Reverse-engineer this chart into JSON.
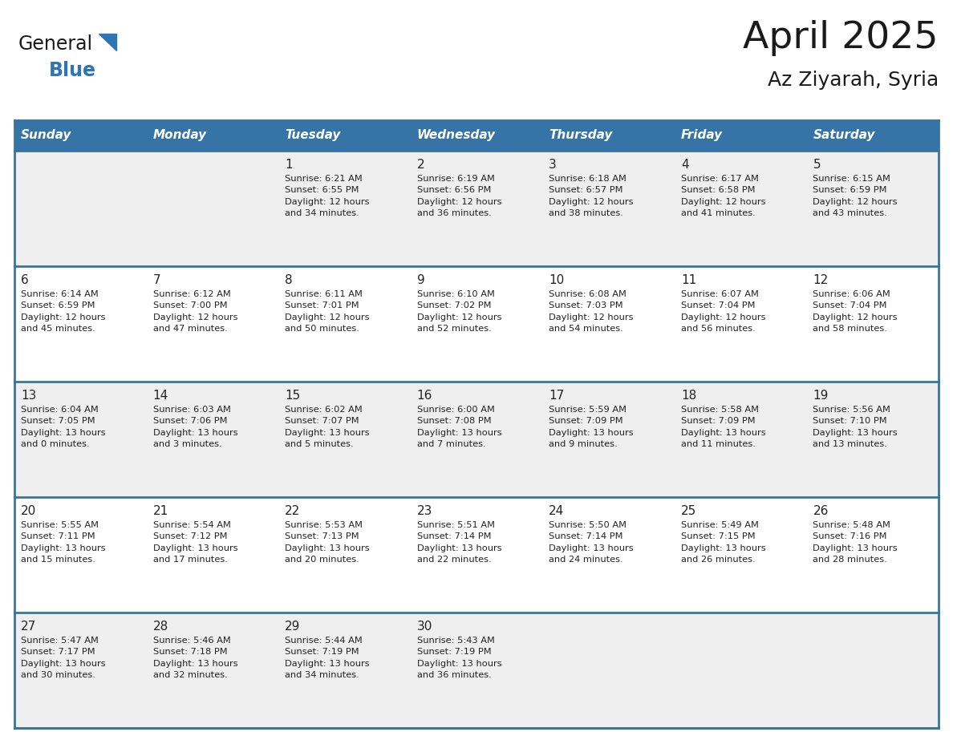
{
  "title": "April 2025",
  "subtitle": "Az Ziyarah, Syria",
  "days_of_week": [
    "Sunday",
    "Monday",
    "Tuesday",
    "Wednesday",
    "Thursday",
    "Friday",
    "Saturday"
  ],
  "header_bg": "#3674a8",
  "header_text": "#FFFFFF",
  "row_bg_odd": "#EFEFEF",
  "row_bg_even": "#FFFFFF",
  "separator_color": "#3674a8",
  "text_color": "#222222",
  "calendar_data": [
    [
      {
        "day": "",
        "info": ""
      },
      {
        "day": "",
        "info": ""
      },
      {
        "day": "1",
        "info": "Sunrise: 6:21 AM\nSunset: 6:55 PM\nDaylight: 12 hours\nand 34 minutes."
      },
      {
        "day": "2",
        "info": "Sunrise: 6:19 AM\nSunset: 6:56 PM\nDaylight: 12 hours\nand 36 minutes."
      },
      {
        "day": "3",
        "info": "Sunrise: 6:18 AM\nSunset: 6:57 PM\nDaylight: 12 hours\nand 38 minutes."
      },
      {
        "day": "4",
        "info": "Sunrise: 6:17 AM\nSunset: 6:58 PM\nDaylight: 12 hours\nand 41 minutes."
      },
      {
        "day": "5",
        "info": "Sunrise: 6:15 AM\nSunset: 6:59 PM\nDaylight: 12 hours\nand 43 minutes."
      }
    ],
    [
      {
        "day": "6",
        "info": "Sunrise: 6:14 AM\nSunset: 6:59 PM\nDaylight: 12 hours\nand 45 minutes."
      },
      {
        "day": "7",
        "info": "Sunrise: 6:12 AM\nSunset: 7:00 PM\nDaylight: 12 hours\nand 47 minutes."
      },
      {
        "day": "8",
        "info": "Sunrise: 6:11 AM\nSunset: 7:01 PM\nDaylight: 12 hours\nand 50 minutes."
      },
      {
        "day": "9",
        "info": "Sunrise: 6:10 AM\nSunset: 7:02 PM\nDaylight: 12 hours\nand 52 minutes."
      },
      {
        "day": "10",
        "info": "Sunrise: 6:08 AM\nSunset: 7:03 PM\nDaylight: 12 hours\nand 54 minutes."
      },
      {
        "day": "11",
        "info": "Sunrise: 6:07 AM\nSunset: 7:04 PM\nDaylight: 12 hours\nand 56 minutes."
      },
      {
        "day": "12",
        "info": "Sunrise: 6:06 AM\nSunset: 7:04 PM\nDaylight: 12 hours\nand 58 minutes."
      }
    ],
    [
      {
        "day": "13",
        "info": "Sunrise: 6:04 AM\nSunset: 7:05 PM\nDaylight: 13 hours\nand 0 minutes."
      },
      {
        "day": "14",
        "info": "Sunrise: 6:03 AM\nSunset: 7:06 PM\nDaylight: 13 hours\nand 3 minutes."
      },
      {
        "day": "15",
        "info": "Sunrise: 6:02 AM\nSunset: 7:07 PM\nDaylight: 13 hours\nand 5 minutes."
      },
      {
        "day": "16",
        "info": "Sunrise: 6:00 AM\nSunset: 7:08 PM\nDaylight: 13 hours\nand 7 minutes."
      },
      {
        "day": "17",
        "info": "Sunrise: 5:59 AM\nSunset: 7:09 PM\nDaylight: 13 hours\nand 9 minutes."
      },
      {
        "day": "18",
        "info": "Sunrise: 5:58 AM\nSunset: 7:09 PM\nDaylight: 13 hours\nand 11 minutes."
      },
      {
        "day": "19",
        "info": "Sunrise: 5:56 AM\nSunset: 7:10 PM\nDaylight: 13 hours\nand 13 minutes."
      }
    ],
    [
      {
        "day": "20",
        "info": "Sunrise: 5:55 AM\nSunset: 7:11 PM\nDaylight: 13 hours\nand 15 minutes."
      },
      {
        "day": "21",
        "info": "Sunrise: 5:54 AM\nSunset: 7:12 PM\nDaylight: 13 hours\nand 17 minutes."
      },
      {
        "day": "22",
        "info": "Sunrise: 5:53 AM\nSunset: 7:13 PM\nDaylight: 13 hours\nand 20 minutes."
      },
      {
        "day": "23",
        "info": "Sunrise: 5:51 AM\nSunset: 7:14 PM\nDaylight: 13 hours\nand 22 minutes."
      },
      {
        "day": "24",
        "info": "Sunrise: 5:50 AM\nSunset: 7:14 PM\nDaylight: 13 hours\nand 24 minutes."
      },
      {
        "day": "25",
        "info": "Sunrise: 5:49 AM\nSunset: 7:15 PM\nDaylight: 13 hours\nand 26 minutes."
      },
      {
        "day": "26",
        "info": "Sunrise: 5:48 AM\nSunset: 7:16 PM\nDaylight: 13 hours\nand 28 minutes."
      }
    ],
    [
      {
        "day": "27",
        "info": "Sunrise: 5:47 AM\nSunset: 7:17 PM\nDaylight: 13 hours\nand 30 minutes."
      },
      {
        "day": "28",
        "info": "Sunrise: 5:46 AM\nSunset: 7:18 PM\nDaylight: 13 hours\nand 32 minutes."
      },
      {
        "day": "29",
        "info": "Sunrise: 5:44 AM\nSunset: 7:19 PM\nDaylight: 13 hours\nand 34 minutes."
      },
      {
        "day": "30",
        "info": "Sunrise: 5:43 AM\nSunset: 7:19 PM\nDaylight: 13 hours\nand 36 minutes."
      },
      {
        "day": "",
        "info": ""
      },
      {
        "day": "",
        "info": ""
      },
      {
        "day": "",
        "info": ""
      }
    ]
  ],
  "logo_text_general": "General",
  "logo_text_blue": "Blue",
  "logo_color_general": "#1a1a1a",
  "logo_color_blue": "#2E75B6",
  "logo_triangle_color": "#2E75B6",
  "fig_width": 11.88,
  "fig_height": 9.18,
  "dpi": 100
}
